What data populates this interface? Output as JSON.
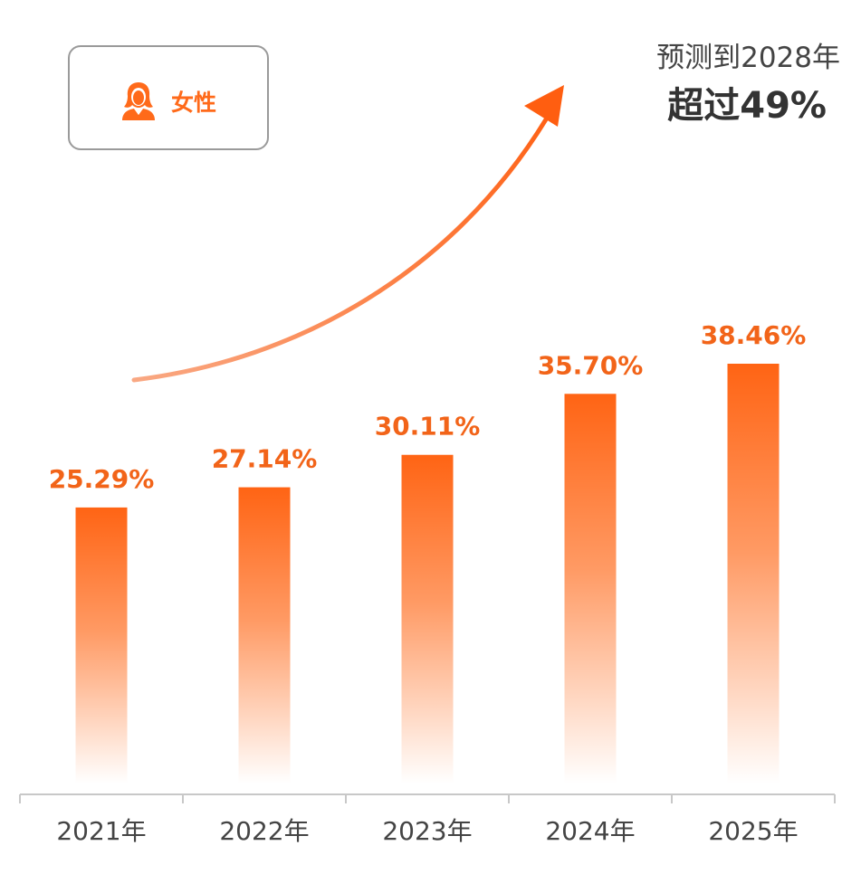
{
  "legend": {
    "label": "女性",
    "icon": "female-user-icon"
  },
  "forecast": {
    "line1": "预测到2028年",
    "line2": "超过49%"
  },
  "colors": {
    "bar_top": "#ff6414",
    "bar_bottom": "#ffffff",
    "label": "#f26419",
    "axis": "#c8c8c8",
    "axis_text": "#444444"
  },
  "chart_data": {
    "type": "bar",
    "categories": [
      "2021年",
      "2022年",
      "2023年",
      "2024年",
      "2025年"
    ],
    "values": [
      25.29,
      27.14,
      30.11,
      35.7,
      38.46
    ],
    "value_labels": [
      "25.29%",
      "27.14%",
      "30.11%",
      "35.70%",
      "38.46%"
    ],
    "unit": "%",
    "title": "",
    "xlabel": "",
    "ylabel": "",
    "grid": false,
    "legend_position": "top-left"
  }
}
